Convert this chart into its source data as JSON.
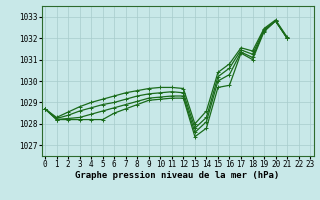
{
  "xlabel": "Graphe pression niveau de la mer (hPa)",
  "ylim": [
    1026.5,
    1033.5
  ],
  "xlim": [
    -0.3,
    23.3
  ],
  "yticks": [
    1027,
    1028,
    1029,
    1030,
    1031,
    1032,
    1033
  ],
  "xticks": [
    0,
    1,
    2,
    3,
    4,
    5,
    6,
    7,
    8,
    9,
    10,
    11,
    12,
    13,
    14,
    15,
    16,
    17,
    18,
    19,
    20,
    21,
    22,
    23
  ],
  "bg_color": "#c8e8e8",
  "grid_color": "#a8cccc",
  "line_color": "#1a6b1a",
  "series": [
    {
      "x": [
        0,
        1,
        2,
        3,
        4,
        5,
        6,
        7,
        8,
        9,
        10,
        11,
        12,
        13,
        14,
        15,
        16,
        17,
        18,
        19,
        20,
        21
      ],
      "y": [
        1028.7,
        1028.2,
        1028.2,
        1028.2,
        1028.2,
        1028.2,
        1028.5,
        1028.7,
        1028.9,
        1029.1,
        1029.15,
        1029.2,
        1029.2,
        1027.4,
        1027.8,
        1029.7,
        1029.8,
        1031.3,
        1031.0,
        1032.3,
        1032.8,
        1032.0
      ]
    },
    {
      "x": [
        0,
        1,
        2,
        3,
        4,
        5,
        6,
        7,
        8,
        9,
        10,
        11,
        12,
        13,
        14,
        15,
        16,
        17,
        18,
        19,
        20,
        21
      ],
      "y": [
        1028.7,
        1028.2,
        1028.25,
        1028.3,
        1028.45,
        1028.6,
        1028.75,
        1028.9,
        1029.05,
        1029.2,
        1029.25,
        1029.3,
        1029.3,
        1027.6,
        1028.1,
        1030.0,
        1030.3,
        1031.35,
        1031.1,
        1032.35,
        1032.8,
        1032.0
      ]
    },
    {
      "x": [
        0,
        1,
        2,
        3,
        4,
        5,
        6,
        7,
        8,
        9,
        10,
        11,
        12,
        13,
        14,
        15,
        16,
        17,
        18,
        19,
        20,
        21
      ],
      "y": [
        1028.7,
        1028.25,
        1028.4,
        1028.6,
        1028.75,
        1028.9,
        1029.0,
        1029.15,
        1029.3,
        1029.4,
        1029.45,
        1029.5,
        1029.45,
        1027.8,
        1028.3,
        1030.2,
        1030.6,
        1031.45,
        1031.25,
        1032.4,
        1032.8,
        1032.0
      ]
    },
    {
      "x": [
        0,
        1,
        2,
        3,
        4,
        5,
        6,
        7,
        8,
        9,
        10,
        11,
        12,
        13,
        14,
        15,
        16,
        17,
        18,
        19,
        20,
        21
      ],
      "y": [
        1028.7,
        1028.3,
        1028.55,
        1028.8,
        1029.0,
        1029.15,
        1029.3,
        1029.45,
        1029.55,
        1029.65,
        1029.7,
        1029.7,
        1029.65,
        1028.0,
        1028.6,
        1030.4,
        1030.8,
        1031.55,
        1031.4,
        1032.45,
        1032.85,
        1032.05
      ]
    }
  ],
  "marker": "+",
  "marker_size": 3,
  "line_width": 0.9,
  "font_family": "monospace",
  "xlabel_fontsize": 6.5,
  "tick_fontsize": 5.5
}
